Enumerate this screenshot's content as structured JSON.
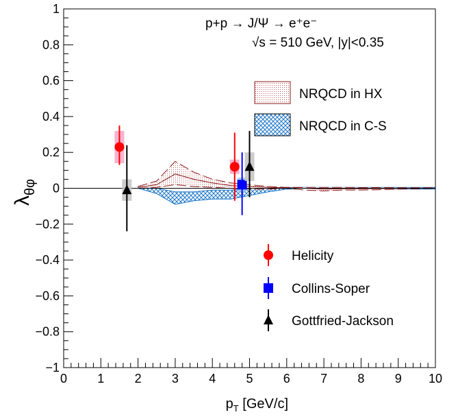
{
  "chart_data": {
    "type": "scatter",
    "title": "",
    "annotations": {
      "reaction": "p+p → J/Ψ → e⁺e⁻",
      "energy": "√s = 510 GeV, |y|<0.35"
    },
    "xlabel": "p_T [GeV/c]",
    "ylabel": "λ_θφ",
    "xlim": [
      0,
      10
    ],
    "ylim": [
      -1,
      1
    ],
    "x_ticks": [
      "0",
      "1",
      "2",
      "3",
      "4",
      "5",
      "6",
      "7",
      "8",
      "9",
      "10"
    ],
    "y_ticks": [
      "−1",
      "−0.8",
      "−0.6",
      "−0.4",
      "−0.2",
      "0",
      "0.2",
      "0.4",
      "0.6",
      "0.8",
      "1"
    ],
    "grid": false,
    "legend_placement": "right",
    "series": [
      {
        "name": "Helicity",
        "marker": "circle",
        "color": "#ff0000",
        "syst_color": "#f7a6c6",
        "points": [
          {
            "x": 1.5,
            "y": 0.23,
            "stat_lo": 0.1,
            "stat_hi": 0.12,
            "syst": 0.09
          },
          {
            "x": 4.6,
            "y": 0.12,
            "stat_lo": 0.19,
            "stat_hi": 0.19,
            "syst": 0.04
          }
        ]
      },
      {
        "name": "Collins-Soper",
        "marker": "square",
        "color": "#0000ff",
        "syst_color": "#a3c8ef",
        "points": [
          {
            "x": 4.8,
            "y": 0.02,
            "stat_lo": 0.17,
            "stat_hi": 0.18,
            "syst": 0.04
          }
        ]
      },
      {
        "name": "Gottfried-Jackson",
        "marker": "triangle",
        "color": "#000000",
        "syst_color": "#c3c3c3",
        "points": [
          {
            "x": 1.7,
            "y": -0.01,
            "stat_lo": 0.23,
            "stat_hi": 0.25,
            "syst": 0.06
          },
          {
            "x": 5.0,
            "y": 0.12,
            "stat_lo": 0.17,
            "stat_hi": 0.2,
            "syst": 0.08
          }
        ]
      }
    ],
    "bands": [
      {
        "name": "NRQCD in HX",
        "color": "#8b1a1a",
        "x": [
          2.0,
          2.5,
          3.0,
          3.5,
          4.0,
          4.5,
          5.0,
          5.5,
          6.0,
          6.5,
          7.0,
          7.5,
          8.0,
          8.5,
          9.0,
          9.5,
          10.0
        ],
        "upper": [
          0.01,
          0.04,
          0.15,
          0.09,
          0.05,
          0.03,
          0.02,
          0.01,
          0.005,
          0.005,
          0.005,
          0.005,
          0.004,
          0.004,
          0.003,
          0.003,
          0.003
        ],
        "lower": [
          0.0,
          0.005,
          0.02,
          0.01,
          0.005,
          0.0,
          -0.005,
          -0.005,
          0.0,
          -0.01,
          -0.015,
          -0.01,
          -0.01,
          -0.008,
          -0.005,
          -0.003,
          0.0
        ],
        "inner": [
          0.005,
          0.02,
          0.08,
          0.05,
          0.03,
          0.015,
          0.01,
          0.005,
          0.003,
          0.0,
          -0.005,
          -0.003,
          -0.003,
          -0.002,
          -0.001,
          0.0,
          0.001
        ]
      },
      {
        "name": "NRQCD in C-S",
        "color": "#1e78c8",
        "x": [
          2.0,
          2.5,
          3.0,
          3.5,
          4.0,
          4.5,
          5.0,
          5.5,
          6.0,
          6.5,
          7.0,
          7.5,
          8.0,
          8.5,
          9.0,
          9.5,
          10.0
        ],
        "upper": [
          0.01,
          0.0,
          -0.02,
          -0.02,
          -0.01,
          -0.01,
          0.0,
          0.0,
          0.005,
          0.005,
          0.005,
          0.005,
          0.005,
          0.005,
          0.005,
          0.005,
          0.005
        ],
        "lower": [
          0.0,
          -0.03,
          -0.09,
          -0.07,
          -0.06,
          -0.06,
          -0.04,
          -0.02,
          -0.005,
          -0.005,
          -0.005,
          -0.005,
          -0.005,
          -0.005,
          -0.005,
          -0.005,
          -0.005
        ]
      }
    ]
  }
}
